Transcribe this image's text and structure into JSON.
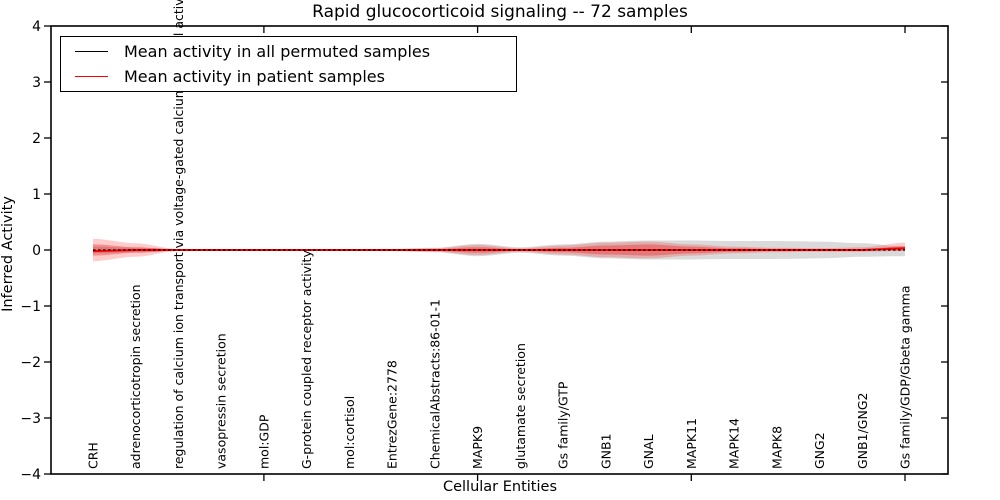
{
  "figure": {
    "title": "Rapid glucocorticoid signaling -- 72 samples",
    "xlabel": "Cellular Entities",
    "ylabel": "Inferred Activity",
    "legend": {
      "position": "upper left",
      "items": [
        {
          "label": "Mean activity in all permuted samples",
          "color": "#000000"
        },
        {
          "label": "Mean activity in patient samples",
          "color": "#ff0000"
        }
      ]
    }
  },
  "chart_data": {
    "type": "line",
    "title": "Rapid glucocorticoid signaling -- 72 samples",
    "xlabel": "Cellular Entities",
    "ylabel": "Inferred Activity",
    "ylim": [
      -4,
      4
    ],
    "yticks": [
      -4,
      -3,
      -2,
      -1,
      0,
      1,
      2,
      3,
      4
    ],
    "xtick_positions": [
      4,
      9,
      14,
      19
    ],
    "grid": false,
    "categories": [
      "CRH",
      "adrenocorticotropin secretion",
      "regulation of calcium ion transport via voltage-gated calcium channel activity",
      "vasopressin secretion",
      "mol:GDP",
      "G-protein coupled receptor activity",
      "mol:cortisol",
      "EntrezGene:2778",
      "ChemicalAbstracts:86-01-1",
      "MAPK9",
      "glutamate secretion",
      "Gs family/GTP",
      "GNB1",
      "GNAL",
      "MAPK11",
      "MAPK14",
      "MAPK8",
      "GNG2",
      "GNB1/GNG2",
      "Gs family/GDP/Gbeta gamma"
    ],
    "series": [
      {
        "name": "Mean activity in all permuted samples",
        "color": "#000000",
        "style": "dashed",
        "values": [
          0,
          0,
          0,
          0,
          0,
          0,
          0,
          0,
          0,
          0,
          0,
          0,
          0,
          0,
          0,
          0,
          0,
          0,
          0,
          0
        ]
      },
      {
        "name": "Mean activity in patient samples",
        "color": "#ff0000",
        "style": "solid",
        "values": [
          -0.02,
          0,
          0,
          0,
          0,
          0,
          0,
          0,
          0,
          0,
          0,
          0,
          0,
          0,
          0,
          0,
          0,
          0,
          0,
          0.03
        ]
      }
    ],
    "bands": [
      {
        "name": "permuted-samples-range",
        "color": "#8c8c8c",
        "opacity": 0.32,
        "upper": [
          0.06,
          0.04,
          0.02,
          0.015,
          0.015,
          0.015,
          0.015,
          0.02,
          0.04,
          0.11,
          0.05,
          0.1,
          0.15,
          0.17,
          0.17,
          0.16,
          0.16,
          0.15,
          0.12,
          0.06
        ],
        "lower": [
          -0.06,
          -0.04,
          -0.02,
          -0.015,
          -0.015,
          -0.015,
          -0.015,
          -0.02,
          -0.04,
          -0.11,
          -0.05,
          -0.1,
          -0.15,
          -0.17,
          -0.17,
          -0.16,
          -0.16,
          -0.15,
          -0.12,
          -0.11
        ]
      },
      {
        "name": "patient-samples-range-outer",
        "color": "#ff0000",
        "opacity": 0.2,
        "upper": [
          0.2,
          0.12,
          0.015,
          0.012,
          0.012,
          0.012,
          0.012,
          0.015,
          0.03,
          0.09,
          0.03,
          0.08,
          0.13,
          0.15,
          0.1,
          0.06,
          0.04,
          0.03,
          0.05,
          0.13
        ],
        "lower": [
          -0.2,
          -0.12,
          -0.015,
          -0.012,
          -0.012,
          -0.012,
          -0.012,
          -0.015,
          -0.03,
          -0.09,
          -0.03,
          -0.08,
          -0.13,
          -0.15,
          -0.1,
          -0.06,
          -0.04,
          -0.03,
          -0.03,
          -0.02
        ]
      },
      {
        "name": "patient-samples-range-inner",
        "color": "#e41a1c",
        "opacity": 0.35,
        "upper": [
          0.1,
          0.05,
          0.01,
          0.008,
          0.008,
          0.008,
          0.008,
          0.01,
          0.015,
          0.05,
          0.015,
          0.04,
          0.08,
          0.1,
          0.06,
          0.03,
          0.02,
          0.015,
          0.02,
          0.07
        ],
        "lower": [
          -0.1,
          -0.05,
          -0.01,
          -0.008,
          -0.008,
          -0.008,
          -0.008,
          -0.01,
          -0.015,
          -0.05,
          -0.015,
          -0.04,
          -0.08,
          -0.1,
          -0.06,
          -0.03,
          -0.02,
          -0.015,
          -0.01,
          -0.01
        ]
      }
    ]
  }
}
